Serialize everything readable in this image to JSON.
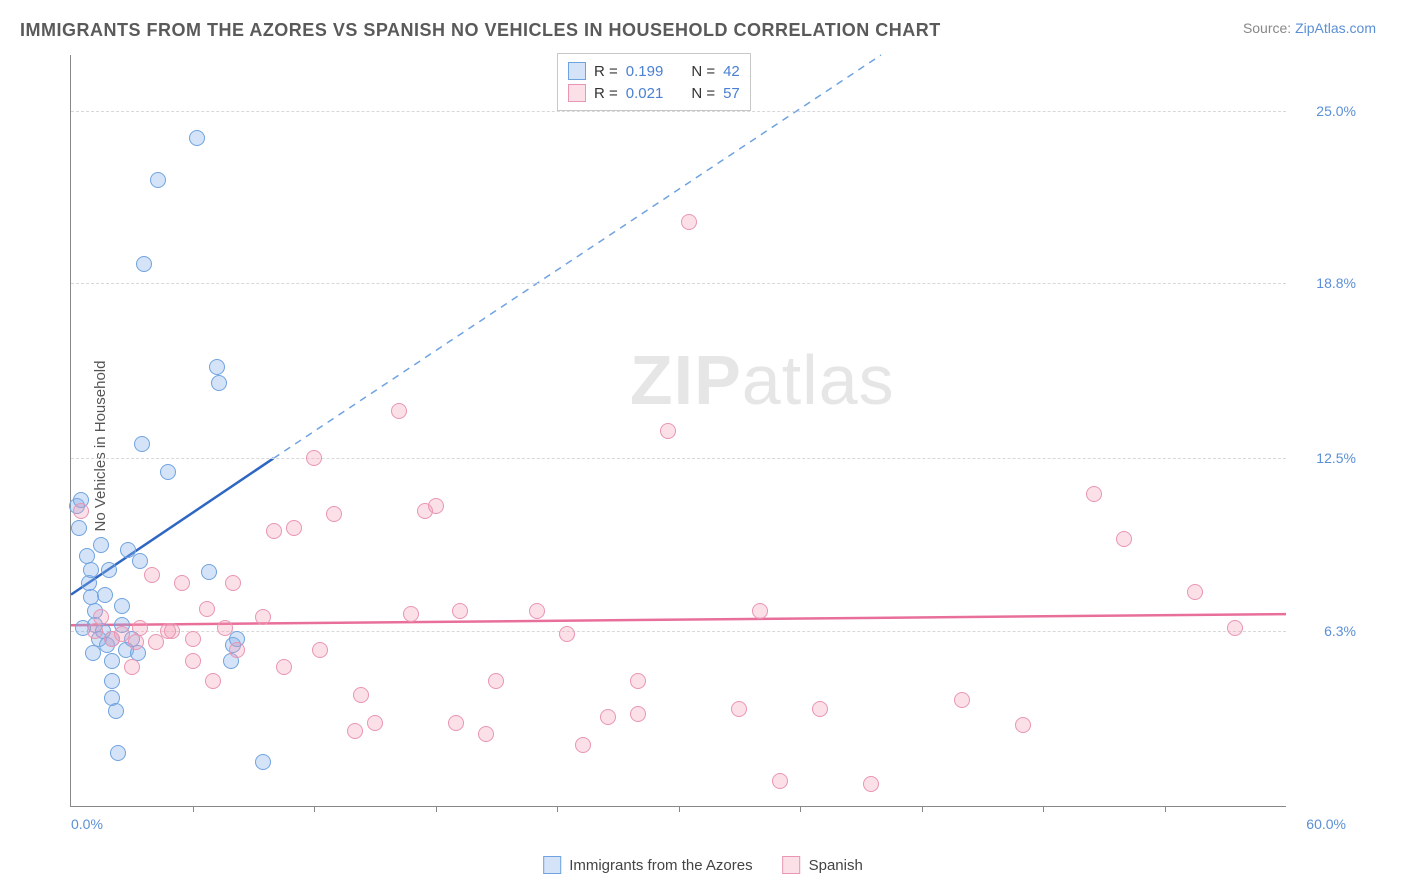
{
  "title": "IMMIGRANTS FROM THE AZORES VS SPANISH NO VEHICLES IN HOUSEHOLD CORRELATION CHART",
  "source_label": "Source: ",
  "source_link": "ZipAtlas.com",
  "ylabel": "No Vehicles in Household",
  "watermark_a": "ZIP",
  "watermark_b": "atlas",
  "chart": {
    "type": "scatter",
    "xlim": [
      0,
      60
    ],
    "ylim": [
      0,
      27
    ],
    "xlim_labels": [
      "0.0%",
      "60.0%"
    ],
    "yticks": [
      6.3,
      12.5,
      18.8,
      25.0
    ],
    "ytick_labels": [
      "6.3%",
      "12.5%",
      "18.8%",
      "25.0%"
    ],
    "xtick_positions": [
      6,
      12,
      18,
      24,
      30,
      36,
      42,
      48,
      54
    ],
    "grid_color": "#d8d8d8",
    "background_color": "#ffffff",
    "point_radius": 8,
    "series": [
      {
        "name": "Immigrants from the Azores",
        "short": "azores",
        "fill": "rgba(132,175,232,0.35)",
        "stroke": "#6fa3e0",
        "trend_color": "#2e66c4",
        "trend_dash_color": "#6fa3e0",
        "R": "0.199",
        "N": "42",
        "trend_solid": {
          "x1": 0,
          "y1": 7.6,
          "x2": 10,
          "y2": 12.5
        },
        "trend_dash": {
          "x1": 10,
          "y1": 12.5,
          "x2": 40,
          "y2": 27.0
        },
        "points": [
          [
            0.3,
            10.8
          ],
          [
            0.4,
            10.0
          ],
          [
            0.5,
            11.0
          ],
          [
            0.8,
            9.0
          ],
          [
            0.9,
            8.0
          ],
          [
            1.0,
            8.5
          ],
          [
            1.0,
            7.5
          ],
          [
            1.2,
            7.0
          ],
          [
            1.2,
            6.5
          ],
          [
            1.4,
            6.0
          ],
          [
            1.6,
            6.3
          ],
          [
            1.8,
            5.8
          ],
          [
            2.0,
            6.0
          ],
          [
            2.0,
            5.2
          ],
          [
            2.0,
            3.9
          ],
          [
            2.2,
            3.4
          ],
          [
            2.3,
            1.9
          ],
          [
            1.5,
            9.4
          ],
          [
            1.9,
            8.5
          ],
          [
            2.5,
            7.2
          ],
          [
            2.5,
            6.5
          ],
          [
            2.7,
            5.6
          ],
          [
            2.8,
            9.2
          ],
          [
            3.0,
            6.0
          ],
          [
            3.3,
            5.5
          ],
          [
            3.4,
            8.8
          ],
          [
            3.5,
            13.0
          ],
          [
            3.6,
            19.5
          ],
          [
            4.3,
            22.5
          ],
          [
            4.8,
            12.0
          ],
          [
            6.2,
            24.0
          ],
          [
            6.8,
            8.4
          ],
          [
            7.2,
            15.8
          ],
          [
            7.3,
            15.2
          ],
          [
            7.9,
            5.2
          ],
          [
            8.0,
            5.8
          ],
          [
            8.2,
            6.0
          ],
          [
            9.5,
            1.6
          ],
          [
            2.0,
            4.5
          ],
          [
            1.1,
            5.5
          ],
          [
            0.6,
            6.4
          ],
          [
            1.7,
            7.6
          ]
        ]
      },
      {
        "name": "Spanish",
        "short": "spanish",
        "fill": "rgba(244,151,179,0.30)",
        "stroke": "#e995b3",
        "trend_color": "#e86f9a",
        "R": "0.021",
        "N": "57",
        "trend_solid": {
          "x1": 0,
          "y1": 6.5,
          "x2": 60,
          "y2": 6.9
        },
        "points": [
          [
            0.5,
            10.6
          ],
          [
            1.2,
            6.3
          ],
          [
            1.5,
            6.8
          ],
          [
            2.0,
            6.0
          ],
          [
            2.5,
            6.2
          ],
          [
            3.0,
            5.0
          ],
          [
            3.2,
            5.9
          ],
          [
            3.4,
            6.4
          ],
          [
            4.0,
            8.3
          ],
          [
            4.2,
            5.9
          ],
          [
            5.0,
            6.3
          ],
          [
            5.5,
            8.0
          ],
          [
            6.0,
            5.2
          ],
          [
            6.7,
            7.1
          ],
          [
            7.0,
            4.5
          ],
          [
            7.6,
            6.4
          ],
          [
            8.0,
            8.0
          ],
          [
            8.2,
            5.6
          ],
          [
            9.5,
            6.8
          ],
          [
            10.5,
            5.0
          ],
          [
            11.0,
            10.0
          ],
          [
            12.0,
            12.5
          ],
          [
            12.3,
            5.6
          ],
          [
            13.0,
            10.5
          ],
          [
            14.0,
            2.7
          ],
          [
            14.3,
            4.0
          ],
          [
            15.0,
            3.0
          ],
          [
            16.2,
            14.2
          ],
          [
            16.8,
            6.9
          ],
          [
            17.5,
            10.6
          ],
          [
            19.0,
            3.0
          ],
          [
            19.2,
            7.0
          ],
          [
            20.5,
            2.6
          ],
          [
            21.0,
            4.5
          ],
          [
            23.0,
            7.0
          ],
          [
            24.5,
            6.2
          ],
          [
            25.3,
            2.2
          ],
          [
            26.5,
            3.2
          ],
          [
            28.0,
            4.5
          ],
          [
            28.0,
            3.3
          ],
          [
            29.5,
            13.5
          ],
          [
            30.5,
            21.0
          ],
          [
            33.0,
            3.5
          ],
          [
            34.0,
            7.0
          ],
          [
            35.0,
            0.9
          ],
          [
            37.0,
            3.5
          ],
          [
            39.5,
            0.8
          ],
          [
            44.0,
            3.8
          ],
          [
            47.0,
            2.9
          ],
          [
            50.5,
            11.2
          ],
          [
            52.0,
            9.6
          ],
          [
            55.5,
            7.7
          ],
          [
            57.5,
            6.4
          ],
          [
            18.0,
            10.8
          ],
          [
            10.0,
            9.9
          ],
          [
            6.0,
            6.0
          ],
          [
            4.8,
            6.3
          ]
        ]
      }
    ]
  },
  "legend_top": {
    "r_label": "R =",
    "n_label": "N ="
  },
  "legend_bottom": [
    {
      "swatch_fill": "rgba(132,175,232,0.35)",
      "swatch_stroke": "#6fa3e0",
      "label": "Immigrants from the Azores"
    },
    {
      "swatch_fill": "rgba(244,151,179,0.30)",
      "swatch_stroke": "#e995b3",
      "label": "Spanish"
    }
  ]
}
